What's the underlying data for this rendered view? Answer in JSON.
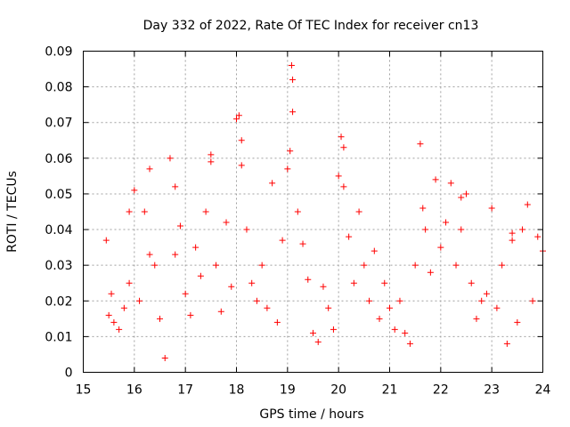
{
  "chart_data": {
    "type": "scatter",
    "title": "Day 332 of 2022, Rate Of TEC Index for receiver cn13",
    "xlabel": "GPS time / hours",
    "ylabel": "ROTI / TECUs",
    "xlim": [
      15,
      24
    ],
    "ylim": [
      0,
      0.09
    ],
    "x_ticks": [
      15,
      16,
      17,
      18,
      19,
      20,
      21,
      22,
      23,
      24
    ],
    "x_tick_labels": [
      "15",
      "16",
      "17",
      "18",
      "19",
      "20",
      "21",
      "22",
      "23",
      "24"
    ],
    "y_ticks": [
      0,
      0.01,
      0.02,
      0.03,
      0.04,
      0.05,
      0.06,
      0.07,
      0.08,
      0.09
    ],
    "y_tick_labels": [
      "0",
      "0.01",
      "0.02",
      "0.03",
      "0.04",
      "0.05",
      "0.06",
      "0.07",
      "0.08",
      "0.09"
    ],
    "grid": true,
    "marker": "+",
    "marker_color": "#ff0000",
    "series": [
      {
        "name": "ROTI",
        "x": [
          15.45,
          15.5,
          15.55,
          15.6,
          15.7,
          15.8,
          15.9,
          16.0,
          16.1,
          16.2,
          16.3,
          16.4,
          16.5,
          16.6,
          16.7,
          16.8,
          16.9,
          17.0,
          17.1,
          17.2,
          17.3,
          17.4,
          17.5,
          17.6,
          17.7,
          17.8,
          17.9,
          18.0,
          18.1,
          18.2,
          18.3,
          18.4,
          18.5,
          18.6,
          18.7,
          18.8,
          18.9,
          19.0,
          19.05,
          19.1,
          19.2,
          19.3,
          19.4,
          19.5,
          19.6,
          19.7,
          19.8,
          19.9,
          20.0,
          20.05,
          20.1,
          20.2,
          20.3,
          20.4,
          20.5,
          20.6,
          20.7,
          20.8,
          20.9,
          21.0,
          21.1,
          21.2,
          21.3,
          21.4,
          21.5,
          21.6,
          21.7,
          21.8,
          21.9,
          22.0,
          22.1,
          22.2,
          22.3,
          22.4,
          22.5,
          22.6,
          22.7,
          22.8,
          22.9,
          23.0,
          23.1,
          23.2,
          23.3,
          23.4,
          23.5,
          23.6,
          23.7,
          23.8,
          23.9,
          24.0,
          15.9,
          16.3,
          16.8,
          17.5,
          18.05,
          18.1,
          19.08,
          19.1,
          20.1,
          21.65,
          22.4,
          23.4
        ],
        "y": [
          0.037,
          0.016,
          0.022,
          0.014,
          0.012,
          0.018,
          0.025,
          0.051,
          0.02,
          0.045,
          0.057,
          0.03,
          0.015,
          0.004,
          0.06,
          0.033,
          0.041,
          0.022,
          0.016,
          0.035,
          0.027,
          0.045,
          0.059,
          0.03,
          0.017,
          0.042,
          0.024,
          0.071,
          0.065,
          0.04,
          0.025,
          0.02,
          0.03,
          0.018,
          0.053,
          0.014,
          0.037,
          0.057,
          0.062,
          0.082,
          0.045,
          0.036,
          0.026,
          0.011,
          0.0085,
          0.024,
          0.018,
          0.012,
          0.055,
          0.066,
          0.052,
          0.038,
          0.025,
          0.045,
          0.03,
          0.02,
          0.034,
          0.015,
          0.025,
          0.018,
          0.012,
          0.02,
          0.011,
          0.008,
          0.03,
          0.064,
          0.04,
          0.028,
          0.054,
          0.035,
          0.042,
          0.053,
          0.03,
          0.04,
          0.05,
          0.025,
          0.015,
          0.02,
          0.022,
          0.046,
          0.018,
          0.03,
          0.008,
          0.039,
          0.014,
          0.04,
          0.047,
          0.02,
          0.038,
          0.034,
          0.045,
          0.033,
          0.052,
          0.061,
          0.072,
          0.058,
          0.086,
          0.073,
          0.063,
          0.046,
          0.049,
          0.037
        ]
      }
    ]
  }
}
